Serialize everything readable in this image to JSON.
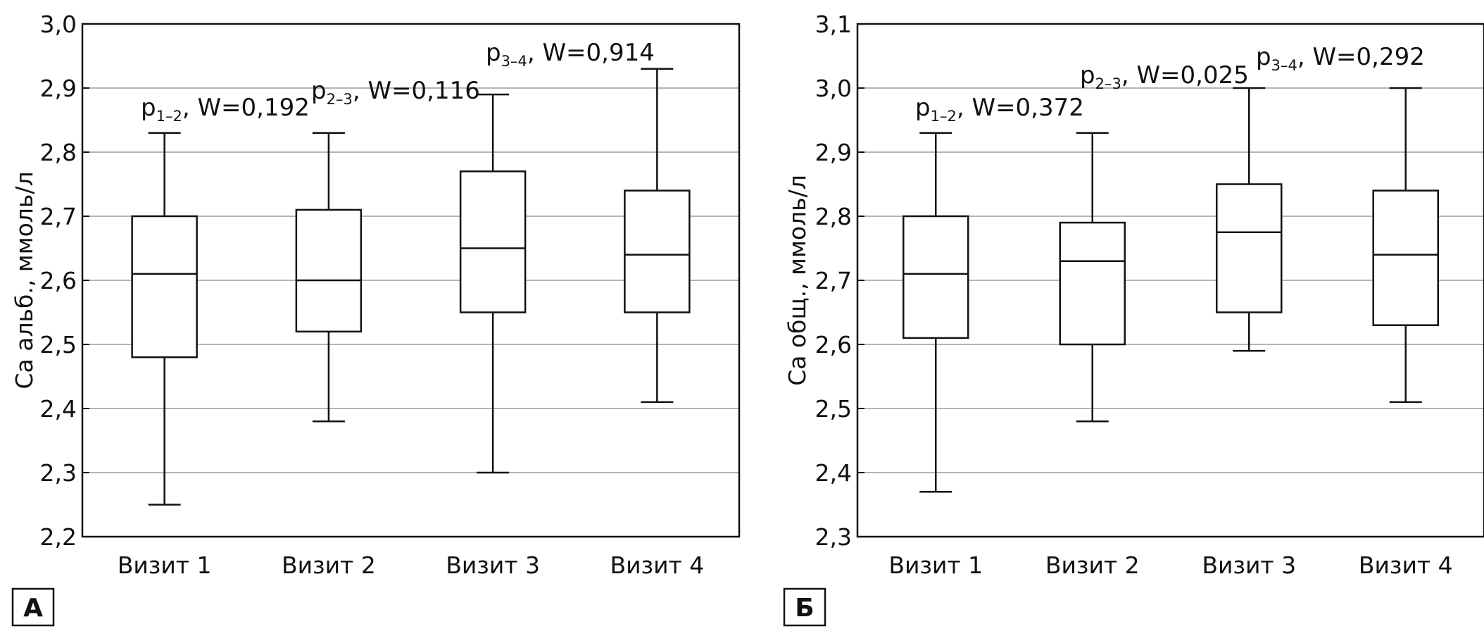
{
  "chart_data": [
    {
      "type": "box",
      "panel_label": "А",
      "ylabel": "Са альб., ммоль/л",
      "ylim": [
        2.2,
        3.0
      ],
      "yticks": [
        "2,2",
        "2,3",
        "2,4",
        "2,5",
        "2,6",
        "2,7",
        "2,8",
        "2,9",
        "3,0"
      ],
      "grid": true,
      "categories": [
        "Визит 1",
        "Визит 2",
        "Визит 3",
        "Визит 4"
      ],
      "boxes": [
        {
          "min": 2.25,
          "q1": 2.48,
          "median": 2.61,
          "q3": 2.7,
          "max": 2.83
        },
        {
          "min": 2.38,
          "q1": 2.52,
          "median": 2.6,
          "q3": 2.71,
          "max": 2.83
        },
        {
          "min": 2.3,
          "q1": 2.55,
          "median": 2.65,
          "q3": 2.77,
          "max": 2.89
        },
        {
          "min": 2.41,
          "q1": 2.55,
          "median": 2.64,
          "q3": 2.74,
          "max": 2.93
        }
      ],
      "annotations": [
        {
          "p": "p",
          "sub": "1–2",
          "text": ", W=0,192"
        },
        {
          "p": "p",
          "sub": "2–3",
          "text": ", W=0,116"
        },
        {
          "p": "p",
          "sub": "3–4",
          "text": ", W=0,914"
        }
      ]
    },
    {
      "type": "box",
      "panel_label": "Б",
      "ylabel": "Са общ., ммоль/л",
      "ylim": [
        2.3,
        3.1
      ],
      "yticks": [
        "2,3",
        "2,4",
        "2,5",
        "2,6",
        "2,7",
        "2,8",
        "2,9",
        "3,0",
        "3,1"
      ],
      "grid": true,
      "categories": [
        "Визит 1",
        "Визит 2",
        "Визит 3",
        "Визит 4"
      ],
      "boxes": [
        {
          "min": 2.37,
          "q1": 2.61,
          "median": 2.71,
          "q3": 2.8,
          "max": 2.93
        },
        {
          "min": 2.48,
          "q1": 2.6,
          "median": 2.73,
          "q3": 2.79,
          "max": 2.93
        },
        {
          "min": 2.59,
          "q1": 2.65,
          "median": 2.775,
          "q3": 2.85,
          "max": 3.0
        },
        {
          "min": 2.51,
          "q1": 2.63,
          "median": 2.74,
          "q3": 2.84,
          "max": 3.0
        }
      ],
      "annotations": [
        {
          "p": "p",
          "sub": "1–2",
          "text": ", W=0,372"
        },
        {
          "p": "p",
          "sub": "2–3",
          "text": ", W=0,025"
        },
        {
          "p": "p",
          "sub": "3–4",
          "text": ", W=0,292"
        }
      ]
    }
  ]
}
